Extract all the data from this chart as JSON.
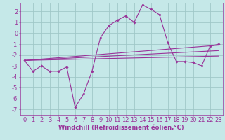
{
  "background_color": "#c5e8e8",
  "grid_color": "#a0c8c8",
  "line_color": "#993399",
  "marker_color": "#993399",
  "xlabel": "Windchill (Refroidissement éolien,°C)",
  "xlim": [
    -0.5,
    23.5
  ],
  "ylim": [
    -7.5,
    2.8
  ],
  "yticks": [
    2,
    1,
    0,
    -1,
    -2,
    -3,
    -4,
    -5,
    -6,
    -7
  ],
  "xticks": [
    0,
    1,
    2,
    3,
    4,
    5,
    6,
    7,
    8,
    9,
    10,
    11,
    12,
    13,
    14,
    15,
    16,
    17,
    18,
    19,
    20,
    21,
    22,
    23
  ],
  "main_x": [
    0,
    1,
    2,
    3,
    4,
    5,
    6,
    7,
    8,
    9,
    10,
    11,
    12,
    13,
    14,
    15,
    16,
    17,
    18,
    19,
    20,
    21,
    22,
    23
  ],
  "main_y": [
    -2.5,
    -3.5,
    -3.0,
    -3.5,
    -3.5,
    -3.1,
    -6.8,
    -5.6,
    -3.5,
    -0.4,
    0.7,
    1.2,
    1.6,
    1.0,
    2.6,
    2.2,
    1.7,
    -0.9,
    -2.6,
    -2.6,
    -2.7,
    -3.0,
    -1.2,
    -1.0
  ],
  "reg_lines": [
    {
      "x0": 0,
      "y0": -2.5,
      "x1": 23,
      "y1": -1.1
    },
    {
      "x0": 0,
      "y0": -2.5,
      "x1": 23,
      "y1": -1.6
    },
    {
      "x0": 0,
      "y0": -2.5,
      "x1": 23,
      "y1": -2.1
    }
  ],
  "xlabel_fontsize": 6,
  "tick_fontsize": 6
}
